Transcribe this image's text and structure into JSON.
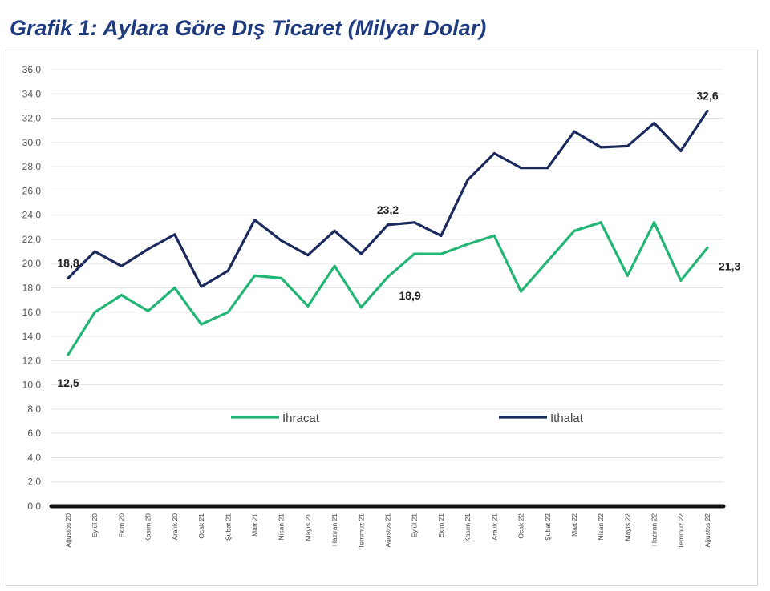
{
  "title": "Grafik 1: Aylara Göre Dış Ticaret (Milyar Dolar)",
  "chart_data": {
    "type": "line",
    "title": "Grafik 1: Aylara Göre Dış Ticaret (Milyar Dolar)",
    "xlabel": "",
    "ylabel": "",
    "ylim": [
      0,
      36
    ],
    "ytick_step": 2,
    "ytick_labels": [
      "0,0",
      "2,0",
      "4,0",
      "6,0",
      "8,0",
      "10,0",
      "12,0",
      "14,0",
      "16,0",
      "18,0",
      "20,0",
      "22,0",
      "24,0",
      "26,0",
      "28,0",
      "30,0",
      "32,0",
      "34,0",
      "36,0"
    ],
    "grid": true,
    "legend_position": "inside-middle",
    "categories": [
      "Ağustos 20",
      "Eylül 20",
      "Ekim 20",
      "Kasım 20",
      "Aralık 20",
      "Ocak 21",
      "Şubat 21",
      "Mart 21",
      "Nisan 21",
      "Mayıs 21",
      "Haziran 21",
      "Temmuz 21",
      "Ağustos 21",
      "Eylül 21",
      "Ekim 21",
      "Kasım 21",
      "Aralık 21",
      "Ocak 22",
      "Şubat 22",
      "Mart 22",
      "Nisan 22",
      "Mayıs 22",
      "Haziran 22",
      "Temmuz 22",
      "Ağustos 22"
    ],
    "series": [
      {
        "name": "İhracat",
        "color": "#22b573",
        "values": [
          12.5,
          16.0,
          17.4,
          16.1,
          18.0,
          15.0,
          16.0,
          19.0,
          18.8,
          16.5,
          19.8,
          16.4,
          18.9,
          20.8,
          20.8,
          21.6,
          22.3,
          17.7,
          20.2,
          22.7,
          23.4,
          19.0,
          23.4,
          18.6,
          21.3
        ]
      },
      {
        "name": "İthalat",
        "color": "#1b2a5c",
        "values": [
          18.8,
          21.0,
          19.8,
          21.2,
          22.4,
          18.1,
          19.4,
          23.6,
          21.9,
          20.7,
          22.7,
          20.8,
          23.2,
          23.4,
          22.3,
          26.9,
          29.1,
          27.9,
          27.9,
          30.9,
          29.6,
          29.7,
          31.6,
          29.3,
          32.6
        ]
      }
    ],
    "data_labels": [
      {
        "series": 0,
        "index": 0,
        "text": "12,5",
        "position": "below"
      },
      {
        "series": 0,
        "index": 12,
        "text": "18,9",
        "position": "below-right"
      },
      {
        "series": 0,
        "index": 24,
        "text": "21,3",
        "position": "below-right"
      },
      {
        "series": 1,
        "index": 0,
        "text": "18,8",
        "position": "above"
      },
      {
        "series": 1,
        "index": 12,
        "text": "23,2",
        "position": "above"
      },
      {
        "series": 1,
        "index": 24,
        "text": "32,6",
        "position": "above"
      }
    ]
  }
}
